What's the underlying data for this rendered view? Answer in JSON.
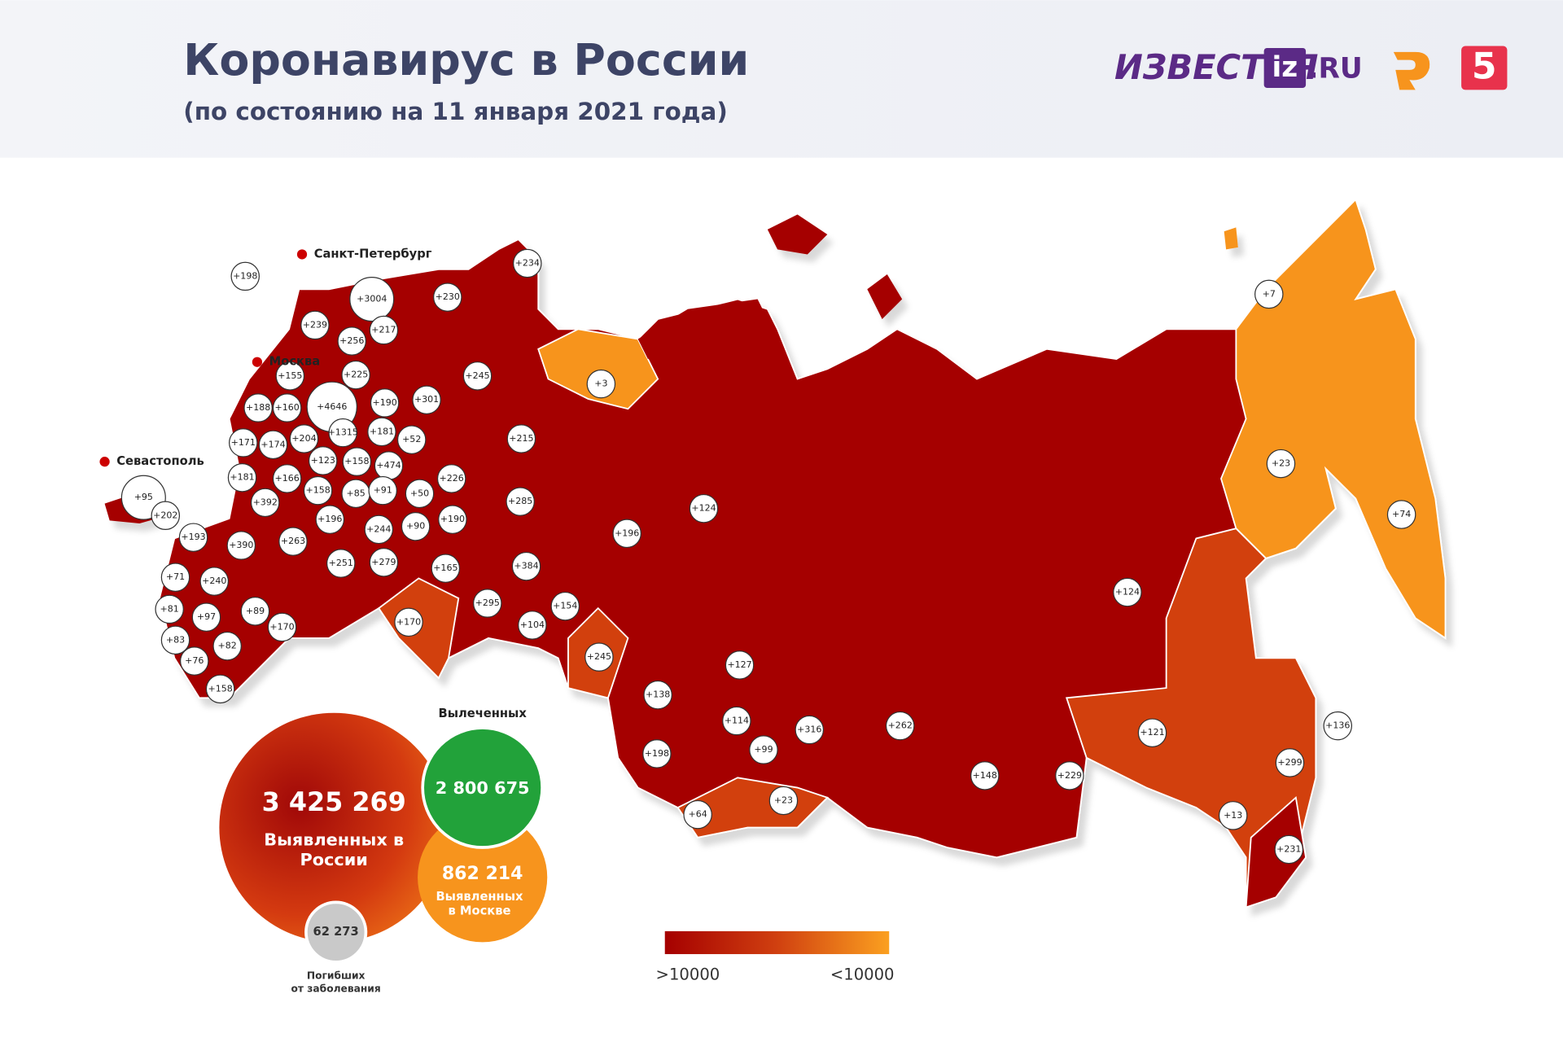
{
  "header": {
    "title": "Коронавирус в России",
    "subtitle": "(по состоянию на 11 января 2021 года)"
  },
  "logos": {
    "izvestia": "ИЗВЕСТИЯ",
    "iz": "iz",
    "ru": ".RU",
    "five": "5"
  },
  "cities": [
    "Санкт-Петербург",
    "Москва",
    "Севастополь"
  ],
  "region_labels": [
    "+198",
    "+3004",
    "+234",
    "+230",
    "+239",
    "+217",
    "+256",
    "+155",
    "+225",
    "+245",
    "+3",
    "+7",
    "+188",
    "+160",
    "+4646",
    "+190",
    "+301",
    "+1315",
    "+181",
    "+52",
    "+215",
    "+171",
    "+174",
    "+204",
    "+123",
    "+158",
    "+474",
    "+23",
    "+181",
    "+166",
    "+226",
    "+95",
    "+392",
    "+158",
    "+85",
    "+91",
    "+50",
    "+285",
    "+124",
    "+202",
    "+74",
    "+196",
    "+190",
    "+244",
    "+90",
    "+196",
    "+193",
    "+390",
    "+263",
    "+251",
    "+279",
    "+165",
    "+384",
    "+71",
    "+240",
    "+295",
    "+154",
    "+124",
    "+81",
    "+89",
    "+97",
    "+104",
    "+170",
    "+170",
    "+245",
    "+83",
    "+82",
    "+127",
    "+76",
    "+158",
    "+138",
    "+114",
    "+316",
    "+262",
    "+136",
    "+121",
    "+198",
    "+99",
    "+299",
    "+148",
    "+229",
    "+23",
    "+64",
    "+13",
    "+231"
  ],
  "stats": {
    "total": {
      "value": "3 425 269",
      "label": [
        "Выявленных в",
        "России"
      ]
    },
    "recovered": {
      "value": "2 800 675",
      "label": [
        "Вылеченных"
      ]
    },
    "moscow": {
      "value": "862 214",
      "label": [
        "Выявленных",
        "в Москве"
      ]
    },
    "deaths": {
      "value": "62 273",
      "label": [
        "Погибших",
        "от заболевания"
      ]
    }
  },
  "legend": {
    "high": ">10000",
    "low": "<10000"
  }
}
